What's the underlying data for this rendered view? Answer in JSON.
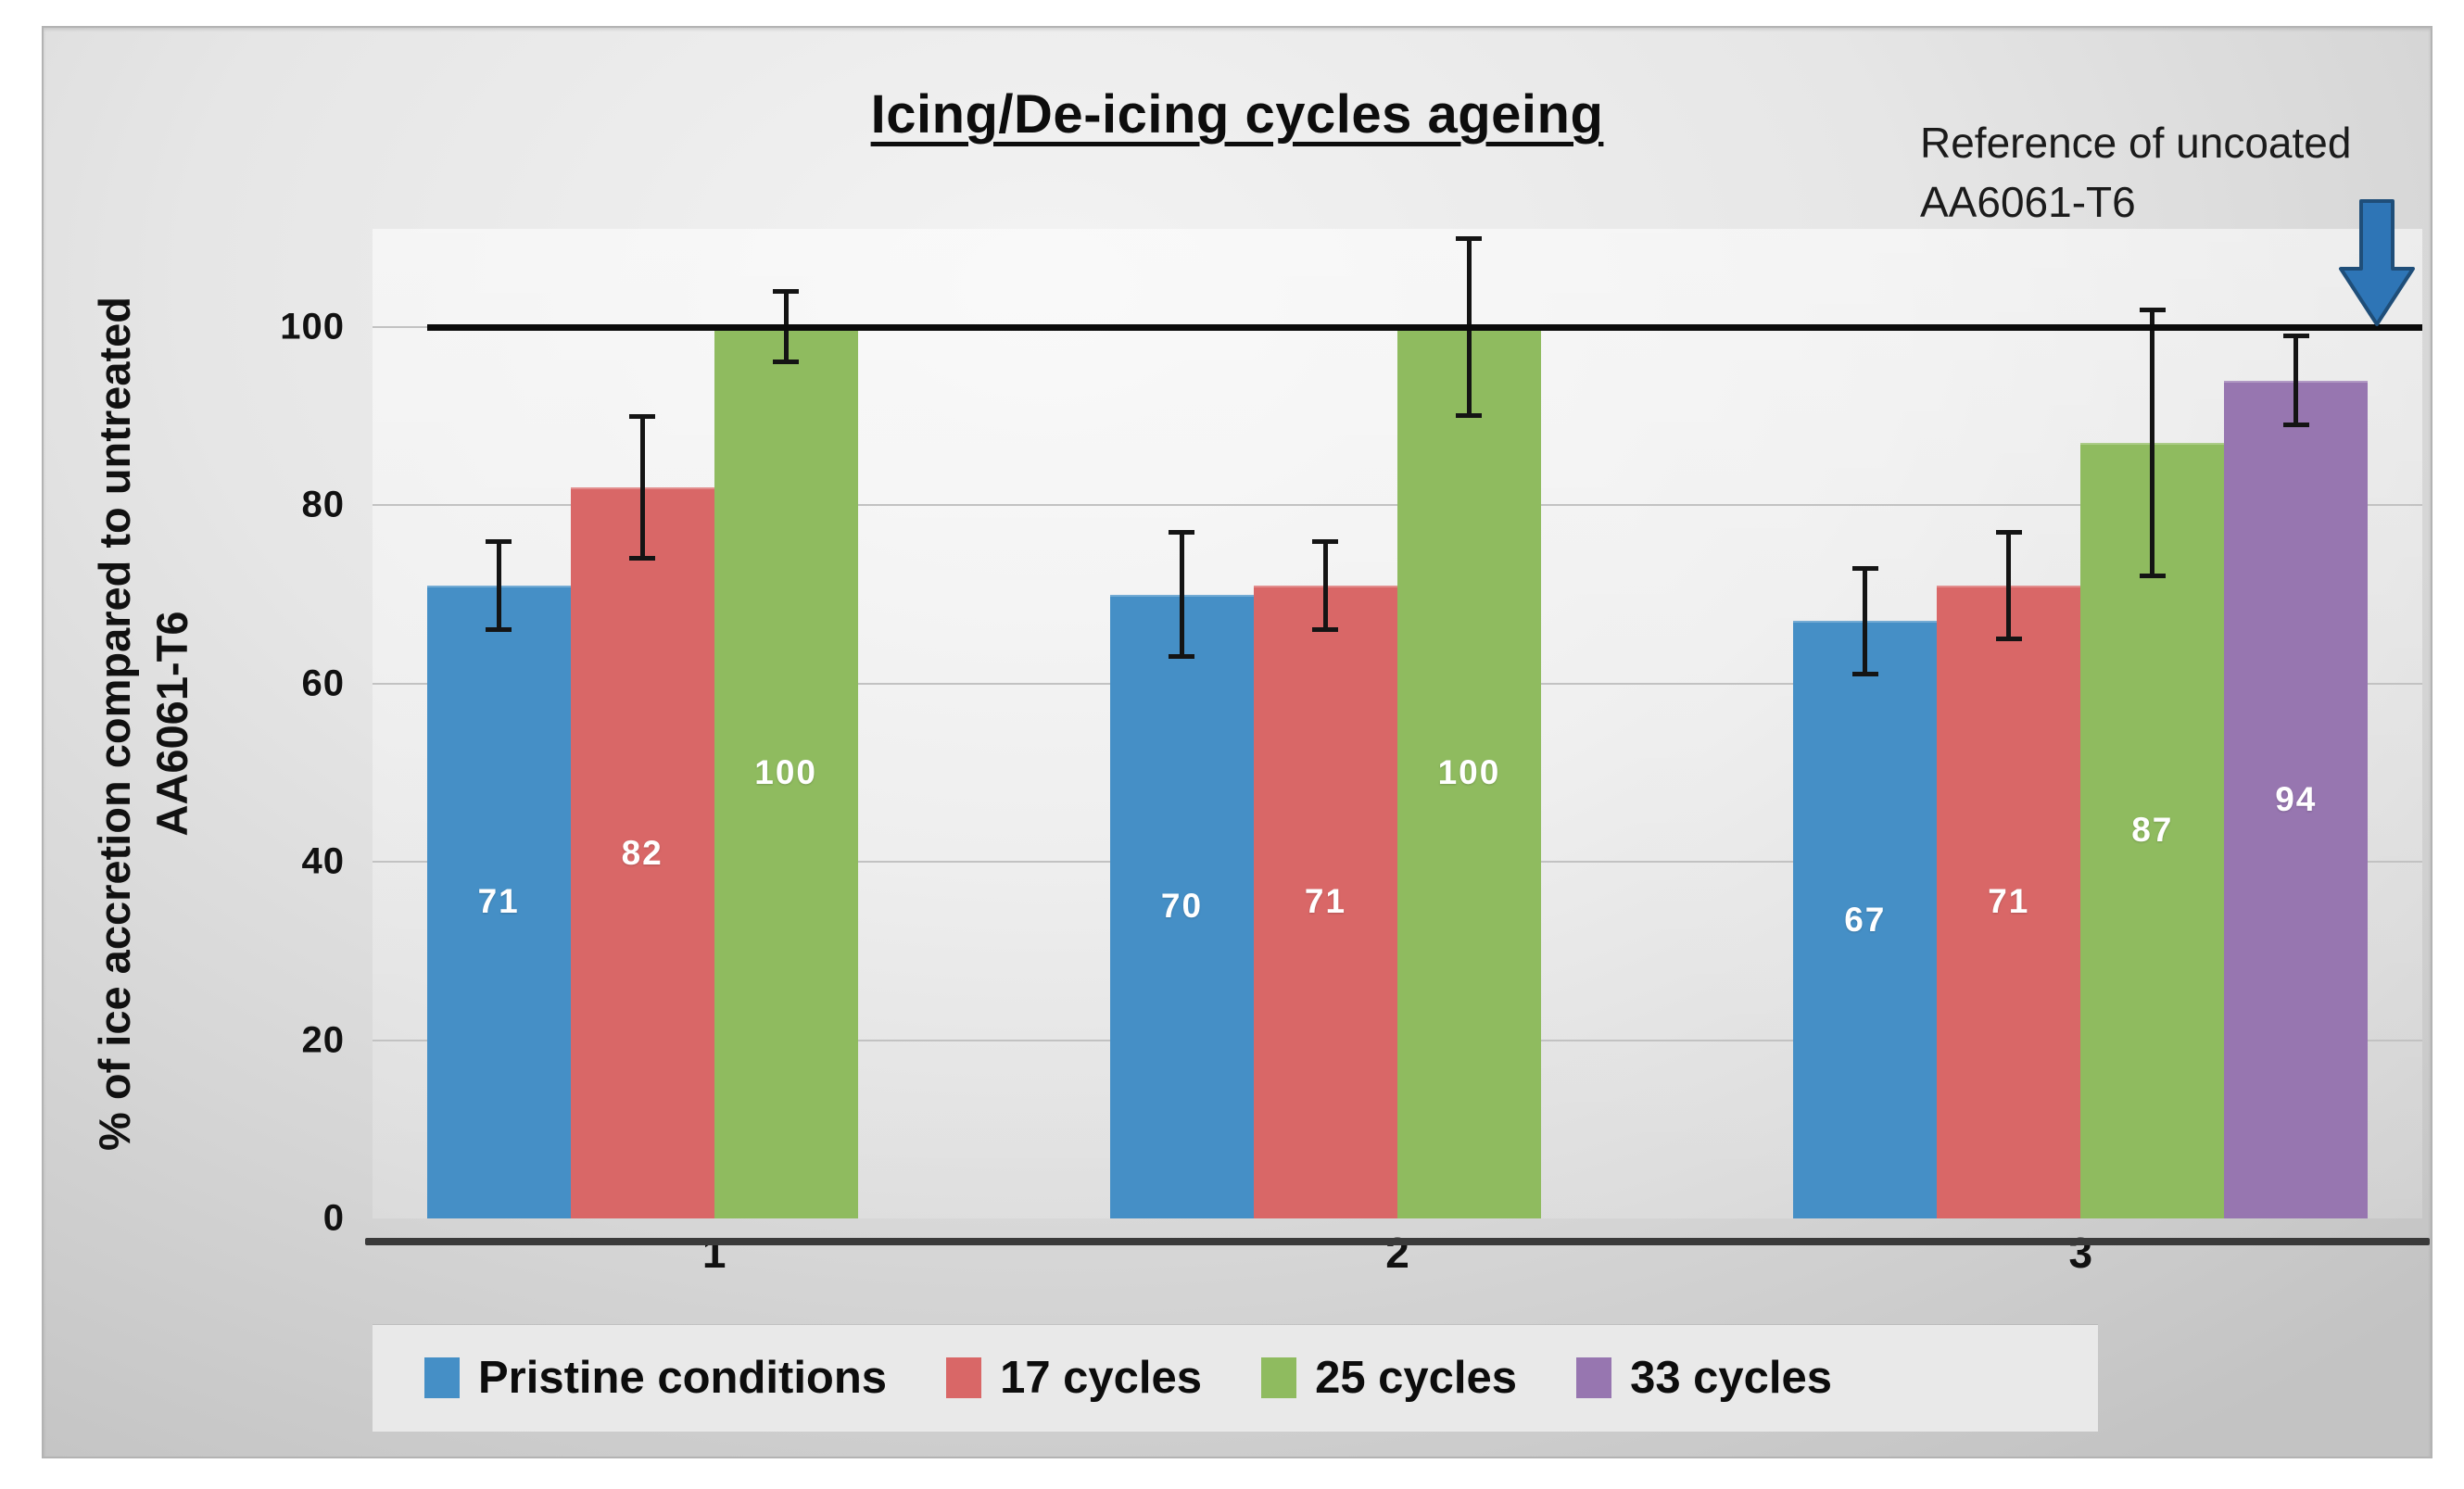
{
  "chart_data": {
    "type": "bar",
    "title": "Icing/De-icing cycles ageing",
    "ylabel_line1": "% of ice accretion compared to untreated",
    "ylabel_line2": "AA6061-T6",
    "categories": [
      "1",
      "2",
      "3"
    ],
    "series": [
      {
        "name": "Pristine conditions",
        "color": "#458FC6",
        "values": [
          71,
          70,
          67
        ],
        "errors": [
          5,
          7,
          6
        ]
      },
      {
        "name": "17 cycles",
        "color": "#D96767",
        "values": [
          82,
          71,
          71
        ],
        "errors": [
          8,
          5,
          6
        ]
      },
      {
        "name": "25 cycles",
        "color": "#8FBB5F",
        "values": [
          100,
          100,
          87
        ],
        "errors": [
          4,
          10,
          15
        ]
      },
      {
        "name": "33 cycles",
        "color": "#9776B0",
        "values": [
          null,
          null,
          94
        ],
        "errors": [
          null,
          null,
          5
        ]
      }
    ],
    "yticks": [
      0,
      20,
      40,
      60,
      80,
      100
    ],
    "ylim": [
      0,
      111
    ],
    "grid": true,
    "legend_position": "bottom",
    "reference_line": {
      "value": 100,
      "label_line1": "Reference of uncoated",
      "label_line2": "AA6061-T6",
      "arrow_color": "#2E75B6",
      "arrow_outline": "#1F4E79"
    }
  }
}
